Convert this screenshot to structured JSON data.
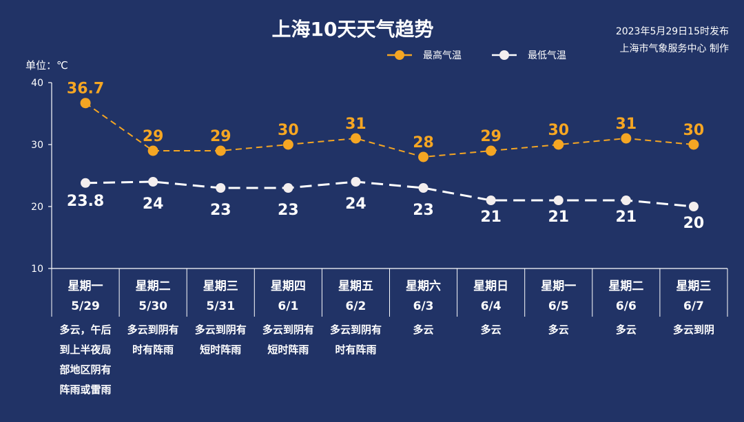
{
  "header": {
    "title": "上海10天天气趋势",
    "issued": "2023年5月29日15时发布",
    "producer": "上海市气象服务中心 制作"
  },
  "chart_data": {
    "type": "line",
    "ylabel": "单位：℃",
    "ylim": [
      10,
      40
    ],
    "yticks": [
      "10",
      "20",
      "30",
      "40"
    ],
    "grid": false,
    "legend_placement": "top-right",
    "days": [
      {
        "weekday": "星期一",
        "date": "5/29",
        "weather": [
          "多云，午后",
          "到上半夜局",
          "部地区阴有",
          "阵雨或雷雨"
        ]
      },
      {
        "weekday": "星期二",
        "date": "5/30",
        "weather": [
          "多云到阴有",
          "时有阵雨"
        ]
      },
      {
        "weekday": "星期三",
        "date": "5/31",
        "weather": [
          "多云到阴有",
          "短时阵雨"
        ]
      },
      {
        "weekday": "星期四",
        "date": "6/1",
        "weather": [
          "多云到阴有",
          "短时阵雨"
        ]
      },
      {
        "weekday": "星期五",
        "date": "6/2",
        "weather": [
          "多云到阴有",
          "时有阵雨"
        ]
      },
      {
        "weekday": "星期六",
        "date": "6/3",
        "weather": [
          "多云"
        ]
      },
      {
        "weekday": "星期日",
        "date": "6/4",
        "weather": [
          "多云"
        ]
      },
      {
        "weekday": "星期一",
        "date": "6/5",
        "weather": [
          "多云"
        ]
      },
      {
        "weekday": "星期二",
        "date": "6/6",
        "weather": [
          "多云"
        ]
      },
      {
        "weekday": "星期三",
        "date": "6/7",
        "weather": [
          "多云到阴"
        ]
      }
    ],
    "series": [
      {
        "name": "最高气温",
        "color": "#f5a623",
        "values": [
          36.7,
          29,
          29,
          30,
          31,
          28,
          29,
          30,
          31,
          30
        ],
        "labels": [
          "36.7",
          "29",
          "29",
          "30",
          "31",
          "28",
          "29",
          "30",
          "31",
          "30"
        ]
      },
      {
        "name": "最低气温",
        "color": "#ffffff",
        "values": [
          23.8,
          24,
          23,
          23,
          24,
          23,
          21,
          21,
          21,
          20
        ],
        "labels": [
          "23.8",
          "24",
          "23",
          "23",
          "24",
          "23",
          "21",
          "21",
          "21",
          "20"
        ]
      }
    ]
  }
}
